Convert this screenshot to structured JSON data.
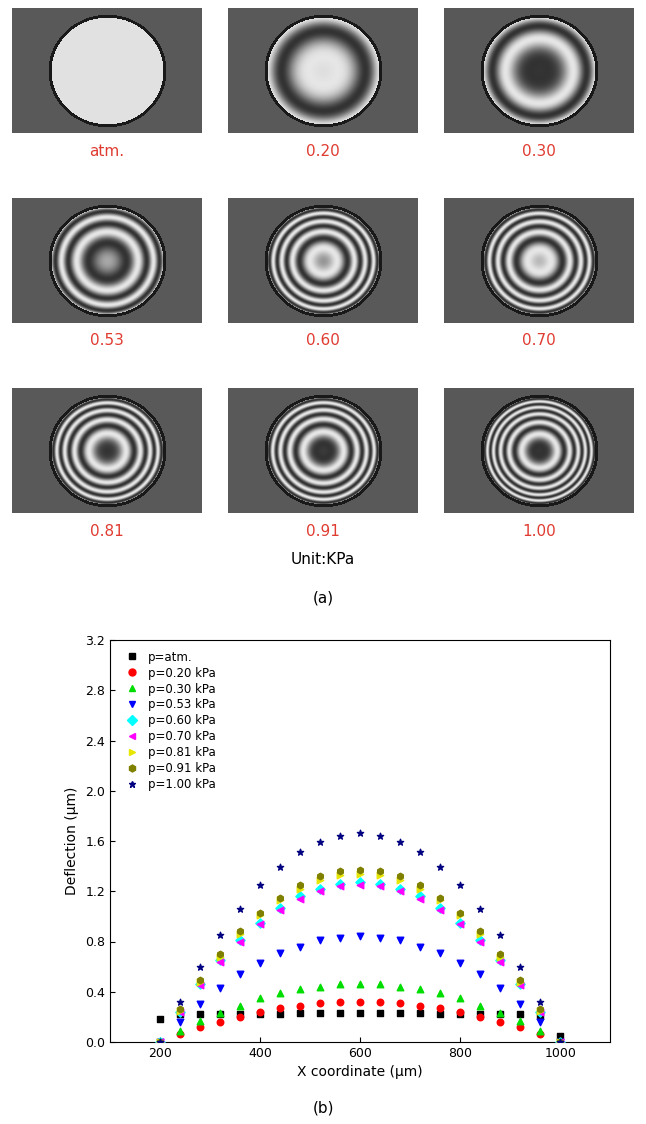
{
  "panel_a": {
    "images": [
      {
        "label": "atm."
      },
      {
        "label": "0.20"
      },
      {
        "label": "0.30"
      },
      {
        "label": "0.53"
      },
      {
        "label": "0.60"
      },
      {
        "label": "0.70"
      },
      {
        "label": "0.81"
      },
      {
        "label": "0.91"
      },
      {
        "label": "1.00"
      }
    ],
    "unit": "Unit:KPa",
    "caption": "(a)"
  },
  "chart_data": {
    "type": "scatter",
    "caption": "(b)",
    "x_label": "X coordinate (µm)",
    "y_label": "Deflection (µm)",
    "xlim": [
      100,
      1100
    ],
    "ylim": [
      0,
      3.2
    ],
    "xticks": [
      200,
      400,
      600,
      800,
      1000
    ],
    "yticks": [
      {
        "value": 0,
        "label": "0.0"
      },
      0.4,
      0.8,
      1.2,
      1.6,
      {
        "value": 2,
        "label": "2.0"
      },
      2.4,
      2.8,
      3.2
    ],
    "legend": "upper left",
    "x": [
      200,
      240,
      280,
      320,
      360,
      400,
      440,
      480,
      520,
      560,
      600,
      640,
      680,
      720,
      760,
      800,
      840,
      880,
      920,
      960,
      1000
    ],
    "series": [
      {
        "name": "p=atm.",
        "color": "#000000",
        "marker": "square",
        "values": [
          0.18,
          0.22,
          0.22,
          0.22,
          0.22,
          0.22,
          0.22,
          0.23,
          0.23,
          0.23,
          0.23,
          0.23,
          0.23,
          0.23,
          0.22,
          0.22,
          0.22,
          0.22,
          0.22,
          0.21,
          0.05
        ]
      },
      {
        "name": "p=0.20 kPa",
        "color": "#ff0000",
        "marker": "circle",
        "values": [
          0,
          0.06,
          0.12,
          0.16,
          0.2,
          0.24,
          0.27,
          0.29,
          0.31,
          0.32,
          0.32,
          0.32,
          0.31,
          0.29,
          0.27,
          0.24,
          0.2,
          0.16,
          0.12,
          0.06,
          0
        ]
      },
      {
        "name": "p=0.30 kPa",
        "color": "#00dd00",
        "marker": "triangle_up",
        "values": [
          0,
          0.09,
          0.17,
          0.23,
          0.29,
          0.35,
          0.39,
          0.42,
          0.44,
          0.46,
          0.46,
          0.46,
          0.44,
          0.42,
          0.39,
          0.35,
          0.29,
          0.23,
          0.17,
          0.09,
          0
        ]
      },
      {
        "name": "p=0.53 kPa",
        "color": "#0000ff",
        "marker": "triangle_down",
        "values": [
          0,
          0.16,
          0.3,
          0.43,
          0.54,
          0.63,
          0.71,
          0.76,
          0.81,
          0.83,
          0.84,
          0.83,
          0.81,
          0.76,
          0.71,
          0.63,
          0.54,
          0.43,
          0.3,
          0.16,
          0
        ]
      },
      {
        "name": "p=0.60 kPa",
        "color": "#00ffff",
        "marker": "diamond",
        "values": [
          0,
          0.24,
          0.46,
          0.65,
          0.81,
          0.95,
          1.07,
          1.16,
          1.22,
          1.26,
          1.27,
          1.26,
          1.22,
          1.16,
          1.07,
          0.95,
          0.81,
          0.65,
          0.46,
          0.24,
          0
        ]
      },
      {
        "name": "p=0.70 kPa",
        "color": "#ff00ff",
        "marker": "triangle_left",
        "values": [
          0,
          0.24,
          0.45,
          0.64,
          0.8,
          0.94,
          1.05,
          1.14,
          1.2,
          1.24,
          1.25,
          1.24,
          1.2,
          1.14,
          1.05,
          0.94,
          0.8,
          0.64,
          0.45,
          0.24,
          0
        ]
      },
      {
        "name": "p=0.81 kPa",
        "color": "#e6e600",
        "marker": "triangle_right",
        "values": [
          0,
          0.25,
          0.48,
          0.68,
          0.86,
          1.01,
          1.13,
          1.22,
          1.29,
          1.33,
          1.34,
          1.33,
          1.29,
          1.22,
          1.13,
          1.01,
          0.86,
          0.68,
          0.48,
          0.25,
          0
        ]
      },
      {
        "name": "p=0.91 kPa",
        "color": "#808000",
        "marker": "hexagon",
        "values": [
          0,
          0.26,
          0.49,
          0.7,
          0.88,
          1.03,
          1.15,
          1.25,
          1.32,
          1.36,
          1.37,
          1.36,
          1.32,
          1.25,
          1.15,
          1.03,
          0.88,
          0.7,
          0.49,
          0.26,
          0
        ]
      },
      {
        "name": "p=1.00 kPa",
        "color": "#000080",
        "marker": "star",
        "values": [
          0,
          0.32,
          0.6,
          0.85,
          1.06,
          1.25,
          1.39,
          1.51,
          1.59,
          1.64,
          1.66,
          1.64,
          1.59,
          1.51,
          1.39,
          1.25,
          1.06,
          0.85,
          0.6,
          0.32,
          0
        ]
      }
    ]
  }
}
